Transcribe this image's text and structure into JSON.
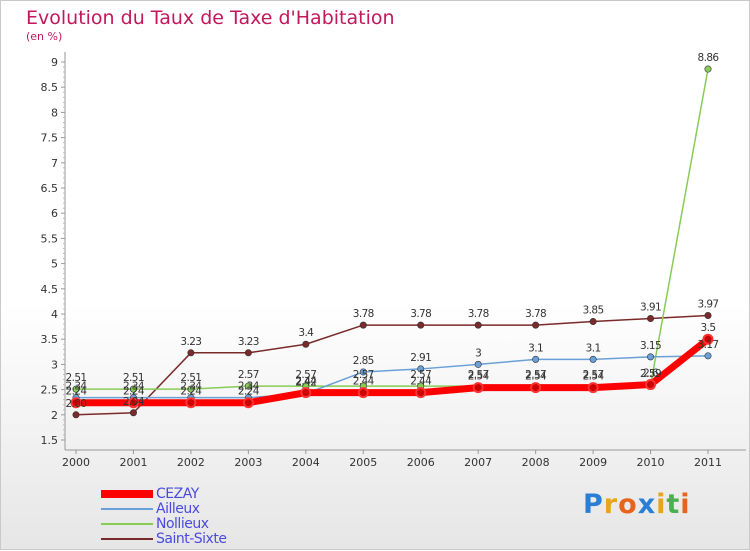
{
  "title": "Evolution du Taux de Taxe d'Habitation",
  "subtitle": "(en %)",
  "logo": {
    "text": "Proxiti",
    "colors": [
      "#2a7fd4",
      "#e8a41b",
      "#e8641b",
      "#2a7fd4",
      "#e8a41b",
      "#4caf50",
      "#e8641b"
    ]
  },
  "chart_data": {
    "type": "line",
    "title": "Evolution du Taux de Taxe d'Habitation",
    "ylabel": "(en %)",
    "xlabel": "",
    "x": [
      "2000",
      "2001",
      "2002",
      "2003",
      "2004",
      "2005",
      "2006",
      "2007",
      "2008",
      "2009",
      "2010",
      "2011"
    ],
    "ylim": [
      1.5,
      9
    ],
    "yticks": [
      "1.5",
      "2",
      "2.5",
      "3",
      "3.5",
      "4",
      "4.5",
      "5",
      "5.5",
      "6",
      "6.5",
      "7",
      "7.5",
      "8",
      "8.5",
      "9"
    ],
    "grid": false,
    "legend_position": "bottom-left",
    "series": [
      {
        "name": "CEZAY",
        "color": "#ff0000",
        "values": [
          2.24,
          2.24,
          2.24,
          2.24,
          2.44,
          2.44,
          2.44,
          2.54,
          2.54,
          2.54,
          2.6,
          3.5
        ],
        "labels": [
          "2.24",
          "2.24",
          "2.24",
          "2.24",
          "2.44",
          "2.44",
          "2.44",
          "2.54",
          "2.54",
          "2.54",
          "2.6",
          "3.5"
        ]
      },
      {
        "name": "Ailleux",
        "color": "#6aa0d8",
        "values": [
          2.34,
          2.34,
          2.34,
          2.34,
          2.42,
          2.85,
          2.91,
          3.0,
          3.1,
          3.1,
          3.15,
          3.17
        ],
        "labels": [
          "2.34",
          "2.34",
          "2.34",
          "2.34",
          "2.42",
          "2.85",
          "2.91",
          "3",
          "3.1",
          "3.1",
          "3.15",
          "3.17"
        ]
      },
      {
        "name": "Nollieux",
        "color": "#88cc55",
        "values": [
          2.51,
          2.51,
          2.51,
          2.57,
          2.57,
          2.57,
          2.57,
          2.57,
          2.57,
          2.57,
          2.59,
          8.86
        ],
        "labels": [
          "2.51",
          "2.51",
          "2.51",
          "2.57",
          "2.57",
          "2.57",
          "2.57",
          "2.57",
          "2.57",
          "2.57",
          "2.59",
          "8.86"
        ]
      },
      {
        "name": "Saint-Sixte",
        "color": "#7a2a2a",
        "values": [
          2.0,
          2.04,
          3.23,
          3.23,
          3.4,
          3.78,
          3.78,
          3.78,
          3.78,
          3.85,
          3.91,
          3.97
        ],
        "labels": [
          "2.00",
          "2.04",
          "3.23",
          "3.23",
          "3.4",
          "3.78",
          "3.78",
          "3.78",
          "3.78",
          "3.85",
          "3.91",
          "3.97"
        ]
      }
    ]
  }
}
